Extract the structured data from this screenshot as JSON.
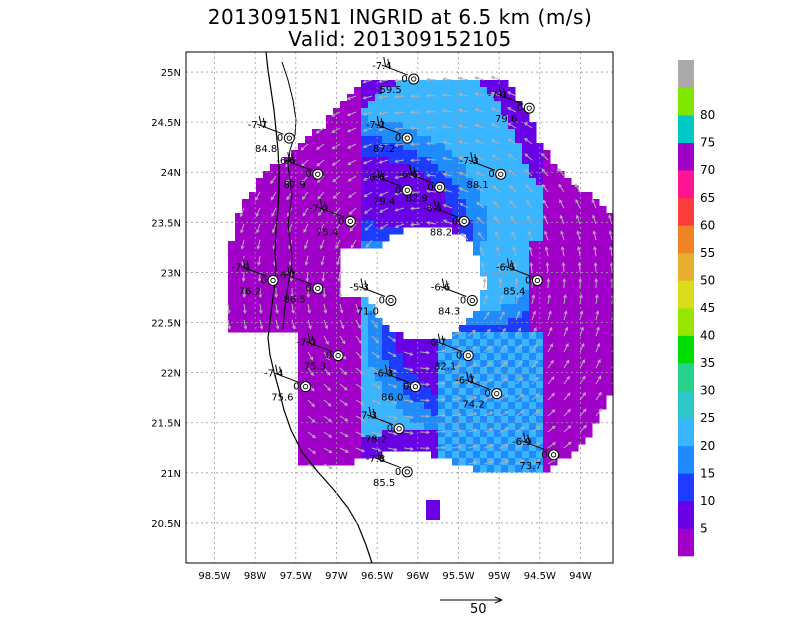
{
  "header": {
    "title": "20130915N1 INGRID at 6.5 km (m/s)",
    "valid": "Valid: 201309152105"
  },
  "map": {
    "lon_labels": [
      "98.5W",
      "98W",
      "97.5W",
      "97W",
      "96.5W",
      "96W",
      "95.5W",
      "95W",
      "94.5W",
      "94W"
    ],
    "lat_labels": [
      "25N",
      "24.5N",
      "24N",
      "23.5N",
      "23N",
      "22.5N",
      "22N",
      "21.5N",
      "21N",
      "20.5N"
    ],
    "lon_range": [
      -98.85,
      -93.6
    ],
    "lat_range": [
      20.1,
      25.2
    ],
    "grid": true
  },
  "colorbar": {
    "labels": [
      "5",
      "10",
      "15",
      "20",
      "25",
      "30",
      "35",
      "40",
      "45",
      "50",
      "55",
      "60",
      "65",
      "70",
      "75",
      "80"
    ],
    "colors": [
      "#a000c8",
      "#6600ff",
      "#1e3cff",
      "#1e8cff",
      "#3ab5ff",
      "#28c8c8",
      "#00d28c",
      "#00dc00",
      "#7fe600",
      "#dcdc00",
      "#e6af2d",
      "#f08228",
      "#fa3c3c",
      "#ff1493",
      "#a000c8",
      "#00c8c8",
      "#80e600",
      "#aaaaaa"
    ],
    "swatch_colors": [
      "#a000c8",
      "#6a00e6",
      "#1e3cff",
      "#1e8cff",
      "#3ab5ff",
      "#2ec8c8",
      "#28d28c",
      "#00dc00",
      "#96e600",
      "#dcdc1e",
      "#e6af2d",
      "#f08228",
      "#fa3c3c",
      "#ff1493",
      "#a000c8",
      "#00c8c8",
      "#80e600",
      "#aaaaaa"
    ]
  },
  "stations": [
    {
      "lat": 24.93,
      "lon": -96.05,
      "top": "-7.4",
      "mid": "0",
      "bot": "59.5"
    },
    {
      "lat": 24.64,
      "lon": -94.63,
      "top": "-7.3",
      "mid": "0",
      "bot": "79.6"
    },
    {
      "lat": 24.34,
      "lon": -97.58,
      "top": "-7.7",
      "mid": "0",
      "bot": "84.8"
    },
    {
      "lat": 24.34,
      "lon": -96.13,
      "top": "-7.2",
      "mid": "0",
      "bot": "87.2"
    },
    {
      "lat": 23.98,
      "lon": -97.23,
      "top": "-6.6",
      "mid": "0",
      "bot": "87.9"
    },
    {
      "lat": 23.98,
      "lon": -94.98,
      "top": "-7.3",
      "mid": "0",
      "bot": "88.1"
    },
    {
      "lat": 23.82,
      "lon": -96.13,
      "top": "-6.6",
      "mid": "0",
      "bot": "79.4"
    },
    {
      "lat": 23.85,
      "lon": -95.73,
      "top": "-6.6",
      "mid": "0",
      "bot": "82.9"
    },
    {
      "lat": 23.51,
      "lon": -96.83,
      "top": "-7.0",
      "mid": "0",
      "bot": "75.4"
    },
    {
      "lat": 23.51,
      "lon": -95.43,
      "top": "-6.5",
      "mid": "0",
      "bot": "88.2"
    },
    {
      "lat": 22.92,
      "lon": -97.78,
      "top": "-7.1",
      "mid": "0",
      "bot": "76.2"
    },
    {
      "lat": 22.92,
      "lon": -94.53,
      "top": "-6.5",
      "mid": "0",
      "bot": "85.4"
    },
    {
      "lat": 22.84,
      "lon": -97.23,
      "top": "-6.7",
      "mid": "0",
      "bot": "86.5"
    },
    {
      "lat": 22.72,
      "lon": -96.33,
      "top": "-5.3",
      "mid": "0",
      "bot": "71.0"
    },
    {
      "lat": 22.72,
      "lon": -95.33,
      "top": "-6.6",
      "mid": "0",
      "bot": "84.3"
    },
    {
      "lat": 22.17,
      "lon": -96.98,
      "top": "-7.0",
      "mid": "0",
      "bot": "75.3"
    },
    {
      "lat": 22.17,
      "lon": -95.38,
      "top": "-6.7",
      "mid": "0",
      "bot": "82.1"
    },
    {
      "lat": 21.86,
      "lon": -97.38,
      "top": "-7.4",
      "mid": "0",
      "bot": "75.6"
    },
    {
      "lat": 21.86,
      "lon": -96.03,
      "top": "-6.3",
      "mid": "0",
      "bot": "86.0"
    },
    {
      "lat": 21.79,
      "lon": -95.03,
      "top": "-6.7",
      "mid": "0",
      "bot": "74.2"
    },
    {
      "lat": 21.44,
      "lon": -96.23,
      "top": "-7.3",
      "mid": "0",
      "bot": "78.2"
    },
    {
      "lat": 21.18,
      "lon": -94.33,
      "top": "-6.9",
      "mid": "0",
      "bot": "73.7"
    },
    {
      "lat": 21.01,
      "lon": -96.13,
      "top": "-7.8",
      "mid": "0",
      "bot": "85.5"
    }
  ],
  "reference_vector": {
    "label": "50"
  }
}
